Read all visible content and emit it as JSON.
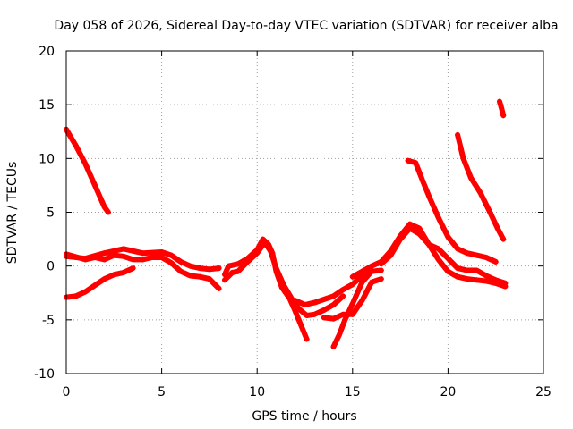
{
  "chart_data": {
    "type": "scatter",
    "title": "Day 058 of 2026, Sidereal Day-to-day VTEC variation (SDTVAR) for receiver alba",
    "xlabel": "GPS time / hours",
    "ylabel": "SDTVAR / TECUs",
    "xlim": [
      0,
      25
    ],
    "ylim": [
      -10,
      20
    ],
    "xticks": [
      "0",
      "5",
      "10",
      "15",
      "20",
      "25"
    ],
    "yticks": [
      "-10",
      "-5",
      "0",
      "5",
      "10",
      "15",
      "20"
    ],
    "grid": true,
    "marker": "+",
    "color": "#ff0000",
    "series": [
      {
        "name": "trace-1",
        "x": [
          0.0,
          0.5,
          1.0,
          1.5,
          2.0,
          2.2
        ],
        "y": [
          12.7,
          11.2,
          9.5,
          7.5,
          5.5,
          5.0
        ]
      },
      {
        "name": "trace-2",
        "x": [
          0.0,
          0.5,
          1.0,
          1.5,
          2.0,
          2.5,
          3.0,
          3.5
        ],
        "y": [
          -2.9,
          -2.8,
          -2.4,
          -1.8,
          -1.2,
          -0.8,
          -0.6,
          -0.2
        ]
      },
      {
        "name": "trace-3",
        "x": [
          0.0,
          1.0,
          2.0,
          3.0,
          4.0,
          5.0,
          5.5,
          6.0,
          6.5,
          7.0,
          7.5,
          8.0
        ],
        "y": [
          0.9,
          0.7,
          1.2,
          1.6,
          1.2,
          1.3,
          1.0,
          0.4,
          0.0,
          -0.2,
          -0.3,
          -0.2
        ]
      },
      {
        "name": "trace-4",
        "x": [
          0.0,
          1.0,
          1.5,
          2.0,
          2.5,
          3.0,
          3.5,
          4.0,
          4.5,
          5.0,
          5.5,
          6.0,
          6.5,
          7.0,
          7.5,
          8.0
        ],
        "y": [
          1.1,
          0.6,
          0.8,
          0.6,
          1.0,
          0.9,
          0.6,
          0.6,
          0.8,
          0.8,
          0.3,
          -0.5,
          -0.9,
          -1.0,
          -1.2,
          -2.1
        ]
      },
      {
        "name": "trace-5",
        "x": [
          8.3,
          8.5,
          9.0,
          9.5,
          10.0,
          10.3,
          10.6,
          10.8,
          11.0,
          11.3,
          11.7,
          12.0,
          12.3,
          12.6
        ],
        "y": [
          -0.8,
          0.0,
          0.2,
          0.7,
          1.5,
          2.5,
          2.0,
          1.2,
          -0.5,
          -2.0,
          -3.0,
          -4.2,
          -5.5,
          -6.8
        ]
      },
      {
        "name": "trace-6",
        "x": [
          8.3,
          8.7,
          9.0,
          9.5,
          10.0,
          10.4,
          10.7,
          11.0,
          11.4,
          11.8,
          12.2,
          12.6,
          13.0,
          13.5,
          14.0,
          14.5
        ],
        "y": [
          -1.3,
          -0.6,
          -0.5,
          0.4,
          1.2,
          2.2,
          1.4,
          -0.2,
          -1.8,
          -3.0,
          -4.0,
          -4.6,
          -4.5,
          -4.1,
          -3.6,
          -2.8
        ]
      },
      {
        "name": "trace-7",
        "x": [
          12.0,
          12.5,
          13.0,
          13.5,
          14.0,
          14.5,
          15.0,
          15.5,
          16.0
        ],
        "y": [
          -3.2,
          -3.6,
          -3.4,
          -3.1,
          -2.8,
          -2.2,
          -1.7,
          -0.9,
          -0.4
        ]
      },
      {
        "name": "trace-8",
        "x": [
          14.0,
          14.3,
          14.6,
          15.0,
          15.5,
          16.0,
          16.5
        ],
        "y": [
          -7.5,
          -6.4,
          -5.0,
          -3.5,
          -1.5,
          -0.5,
          -0.4
        ]
      },
      {
        "name": "trace-9",
        "x": [
          13.5,
          14.0,
          14.5,
          15.0,
          15.5,
          16.0,
          16.5
        ],
        "y": [
          -4.8,
          -4.9,
          -4.5,
          -4.5,
          -3.2,
          -1.5,
          -1.2
        ]
      },
      {
        "name": "trace-10",
        "x": [
          15.0,
          15.5,
          16.0,
          16.5,
          17.0,
          17.5,
          18.0,
          18.5,
          19.0,
          19.5,
          20.0,
          20.5,
          21.0,
          21.5,
          22.0,
          22.5,
          23.0
        ],
        "y": [
          -1.0,
          -0.5,
          0.0,
          0.4,
          1.4,
          2.8,
          3.9,
          3.5,
          2.0,
          0.6,
          -0.5,
          -1.0,
          -1.2,
          -1.3,
          -1.4,
          -1.6,
          -1.9
        ]
      },
      {
        "name": "trace-11",
        "x": [
          16.5,
          17.0,
          17.5,
          18.0,
          18.5,
          19.0,
          19.5,
          20.0,
          20.5,
          21.0,
          21.5,
          22.0,
          22.5,
          23.0
        ],
        "y": [
          0.2,
          1.0,
          2.5,
          3.5,
          3.0,
          2.0,
          1.6,
          0.7,
          -0.2,
          -0.4,
          -0.4,
          -0.9,
          -1.3,
          -1.6
        ]
      },
      {
        "name": "trace-12",
        "x": [
          17.9,
          18.3,
          18.7,
          19.0,
          19.5,
          20.0,
          20.5,
          21.0,
          21.5,
          22.0,
          22.5
        ],
        "y": [
          9.8,
          9.6,
          7.8,
          6.5,
          4.5,
          2.7,
          1.6,
          1.2,
          1.0,
          0.8,
          0.4
        ]
      },
      {
        "name": "trace-13",
        "x": [
          20.5,
          20.8,
          21.2,
          21.7,
          22.2,
          22.6,
          22.9
        ],
        "y": [
          12.2,
          10.0,
          8.2,
          6.8,
          5.0,
          3.5,
          2.5
        ]
      },
      {
        "name": "trace-14",
        "x": [
          22.7,
          22.8,
          22.9
        ],
        "y": [
          15.3,
          14.7,
          14.0
        ]
      }
    ]
  }
}
